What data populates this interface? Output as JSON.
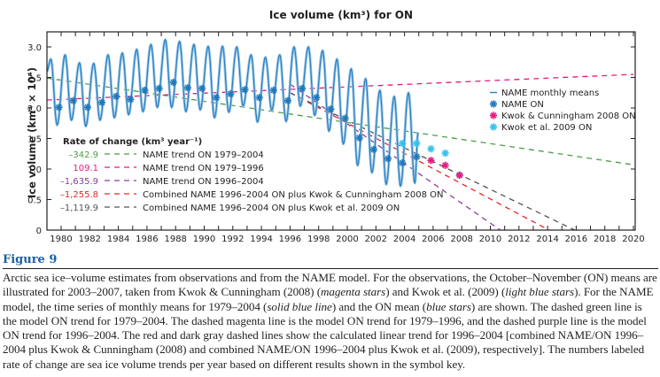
{
  "figure": {
    "label": "Figure 9",
    "caption_parts": [
      {
        "text": "Arctic sea ice–volume estimates from observations and from the NAME model. For the observations, the October–November (ON) means are illustrated for 2003–2007, taken from Kwok & Cunningham (2008) (",
        "italic": false
      },
      {
        "text": "magenta stars",
        "italic": true
      },
      {
        "text": ") and Kwok et al. (2009) (",
        "italic": false
      },
      {
        "text": "light blue stars",
        "italic": true
      },
      {
        "text": "). For the NAME model, the time series of monthly means for 1979–2004 (",
        "italic": false
      },
      {
        "text": "solid blue line",
        "italic": true
      },
      {
        "text": ") and the ON mean (",
        "italic": false
      },
      {
        "text": "blue stars",
        "italic": true
      },
      {
        "text": ") are shown. The dashed green line is the model ON trend for 1979–2004. The dashed magenta line is the model ON trend for 1979–1996, and the dashed purple line is the model ON trend for 1996–2004. The red and dark gray dashed lines show the calculated linear trend for 1996–2004 [combined NAME/ON 1996–2004 plus Kwok & Cunningham (2008) and combined NAME/ON 1996–2004 plus Kwok et al. (2009), respectively]. The numbers labeled rate of change are sea ice volume trends per year based on different results shown in the symbol key.",
        "italic": false
      }
    ]
  },
  "chart_data": {
    "type": "line",
    "title": "Ice volume (km³) for ON",
    "xlabel": "",
    "ylabel": "Ice volume (km³ × 10⁴)",
    "xlim": [
      1979,
      2020
    ],
    "ylim": [
      0,
      3.25
    ],
    "xticks": [
      1980,
      1982,
      1984,
      1986,
      1988,
      1990,
      1992,
      1994,
      1996,
      1998,
      2000,
      2002,
      2004,
      2006,
      2008,
      2010,
      2012,
      2014,
      2016,
      2018,
      2020
    ],
    "yticks": [
      0,
      0.5,
      1.0,
      1.5,
      2.0,
      2.5,
      3.0
    ],
    "ytick_labels": [
      "0",
      "0.5",
      "1.0",
      "1.5",
      "2.0",
      "2.5",
      "3.0"
    ],
    "grid": false,
    "colors": {
      "monthly": "#2b7fc1",
      "monthly_halo": "#9cc8e6",
      "name_on": "#1f77bb",
      "kc2008": "#e6197e",
      "kwok2009": "#33c0ee",
      "trend_1979_2004": "#4a9e45",
      "trend_1979_1996": "#e6197e",
      "trend_1996_2004": "#8e3a9e",
      "combined_kc": "#e8262b",
      "combined_kwok": "#555555",
      "text": "#231f20"
    },
    "monthly_means": {
      "name": "NAME monthly means",
      "start": {
        "x": 1979.0,
        "y": 2.6
      },
      "annual_max": {
        "years": [
          1979,
          1980,
          1981,
          1982,
          1983,
          1984,
          1985,
          1986,
          1987,
          1988,
          1989,
          1990,
          1991,
          1992,
          1993,
          1994,
          1995,
          1996,
          1997,
          1998,
          1999,
          2000,
          2001,
          2002,
          2003,
          2004
        ],
        "values": [
          2.8,
          2.87,
          2.74,
          2.73,
          2.87,
          2.9,
          2.96,
          3.04,
          3.12,
          3.09,
          3.04,
          3.01,
          3.01,
          3.0,
          2.87,
          2.83,
          2.87,
          3.0,
          3.0,
          2.94,
          2.8,
          2.64,
          2.48,
          2.29,
          2.19,
          2.25
        ]
      },
      "annual_min": {
        "years": [
          1979,
          1980,
          1981,
          1982,
          1983,
          1984,
          1985,
          1986,
          1987,
          1988,
          1989,
          1990,
          1991,
          1992,
          1993,
          1994,
          1995,
          1996,
          1997,
          1998,
          1999,
          2000,
          2001,
          2002,
          2003,
          2004
        ],
        "values": [
          1.72,
          1.8,
          1.7,
          1.8,
          1.84,
          1.89,
          1.94,
          2.01,
          2.01,
          1.94,
          1.97,
          1.84,
          1.93,
          2.03,
          1.77,
          1.96,
          1.78,
          2.03,
          1.88,
          1.62,
          1.41,
          1.06,
          0.94,
          0.75,
          0.72,
          0.77
        ]
      },
      "end": {
        "x": 2004.95,
        "y": 1.6
      }
    },
    "series": [
      {
        "name": "NAME ON",
        "marker": "star",
        "x": [
          1979.85,
          1980.85,
          1981.85,
          1982.85,
          1983.85,
          1984.85,
          1985.85,
          1986.85,
          1987.85,
          1988.85,
          1989.85,
          1990.85,
          1991.85,
          1992.85,
          1993.85,
          1994.85,
          1995.85,
          1996.85,
          1997.85,
          1998.85,
          1999.85,
          2000.85,
          2001.85,
          2002.85,
          2003.85,
          2004.85
        ],
        "y": [
          2.01,
          2.12,
          2.01,
          2.09,
          2.19,
          2.14,
          2.29,
          2.32,
          2.42,
          2.33,
          2.32,
          2.17,
          2.23,
          2.3,
          2.17,
          2.29,
          2.12,
          2.32,
          2.17,
          1.98,
          1.83,
          1.51,
          1.32,
          1.17,
          1.1,
          1.2
        ]
      },
      {
        "name": "Kwok & Cunningham 2008 ON",
        "marker": "star",
        "x": [
          2005.85,
          2006.85,
          2007.85
        ],
        "y": [
          1.14,
          1.06,
          0.9
        ]
      },
      {
        "name": "Kwok et al. 2009 ON",
        "marker": "star",
        "x": [
          2003.85,
          2004.85,
          2005.85,
          2006.85,
          2007.85
        ],
        "y": [
          1.42,
          1.42,
          1.33,
          1.26,
          0.9
        ]
      }
    ],
    "trend_lines": [
      {
        "name": "NAME trend ON 1979–2004",
        "rate": "–342.9",
        "color_key": "trend_1979_2004",
        "x0": 1979,
        "y0": 2.49,
        "x1": 2020,
        "y1": 1.07
      },
      {
        "name": "NAME trend ON 1979–1996",
        "rate": "109.1",
        "color_key": "trend_1979_1996",
        "x0": 1979,
        "y0": 2.13,
        "x1": 2020,
        "y1": 2.55
      },
      {
        "name": "NAME trend ON 1996–2004",
        "rate": "–1,635.9",
        "color_key": "trend_1996_2004",
        "x0": 1996.0,
        "y0": 2.39,
        "x1": 2010.7,
        "y1": 0.0
      },
      {
        "name": "Combined NAME 1996–2004 ON plus Kwok & Cunningham 2008 ON",
        "rate": "–1,255.8",
        "color_key": "combined_kc",
        "x0": 1996.0,
        "y0": 2.25,
        "x1": 2014.1,
        "y1": 0.0
      },
      {
        "name": "Combined NAME 1996–2004 ON plus Kwok et al. 2009 ON",
        "rate": "–1,119.9",
        "color_key": "combined_kwok",
        "x0": 1996.0,
        "y0": 2.25,
        "x1": 2015.9,
        "y1": 0.0
      }
    ],
    "legend": {
      "placement": "right",
      "entries": [
        {
          "label": "NAME monthly means",
          "symbol": "line",
          "color_key": "monthly"
        },
        {
          "label": "NAME ON",
          "symbol": "star",
          "color_key": "name_on"
        },
        {
          "label": "Kwok & Cunningham 2008 ON",
          "symbol": "star",
          "color_key": "kc2008"
        },
        {
          "label": "Kwok et al. 2009 ON",
          "symbol": "star",
          "color_key": "kwok2009"
        }
      ]
    },
    "rate_key": {
      "title": "Rate of change (km³ year⁻¹)",
      "placement": "bottom-left"
    }
  }
}
